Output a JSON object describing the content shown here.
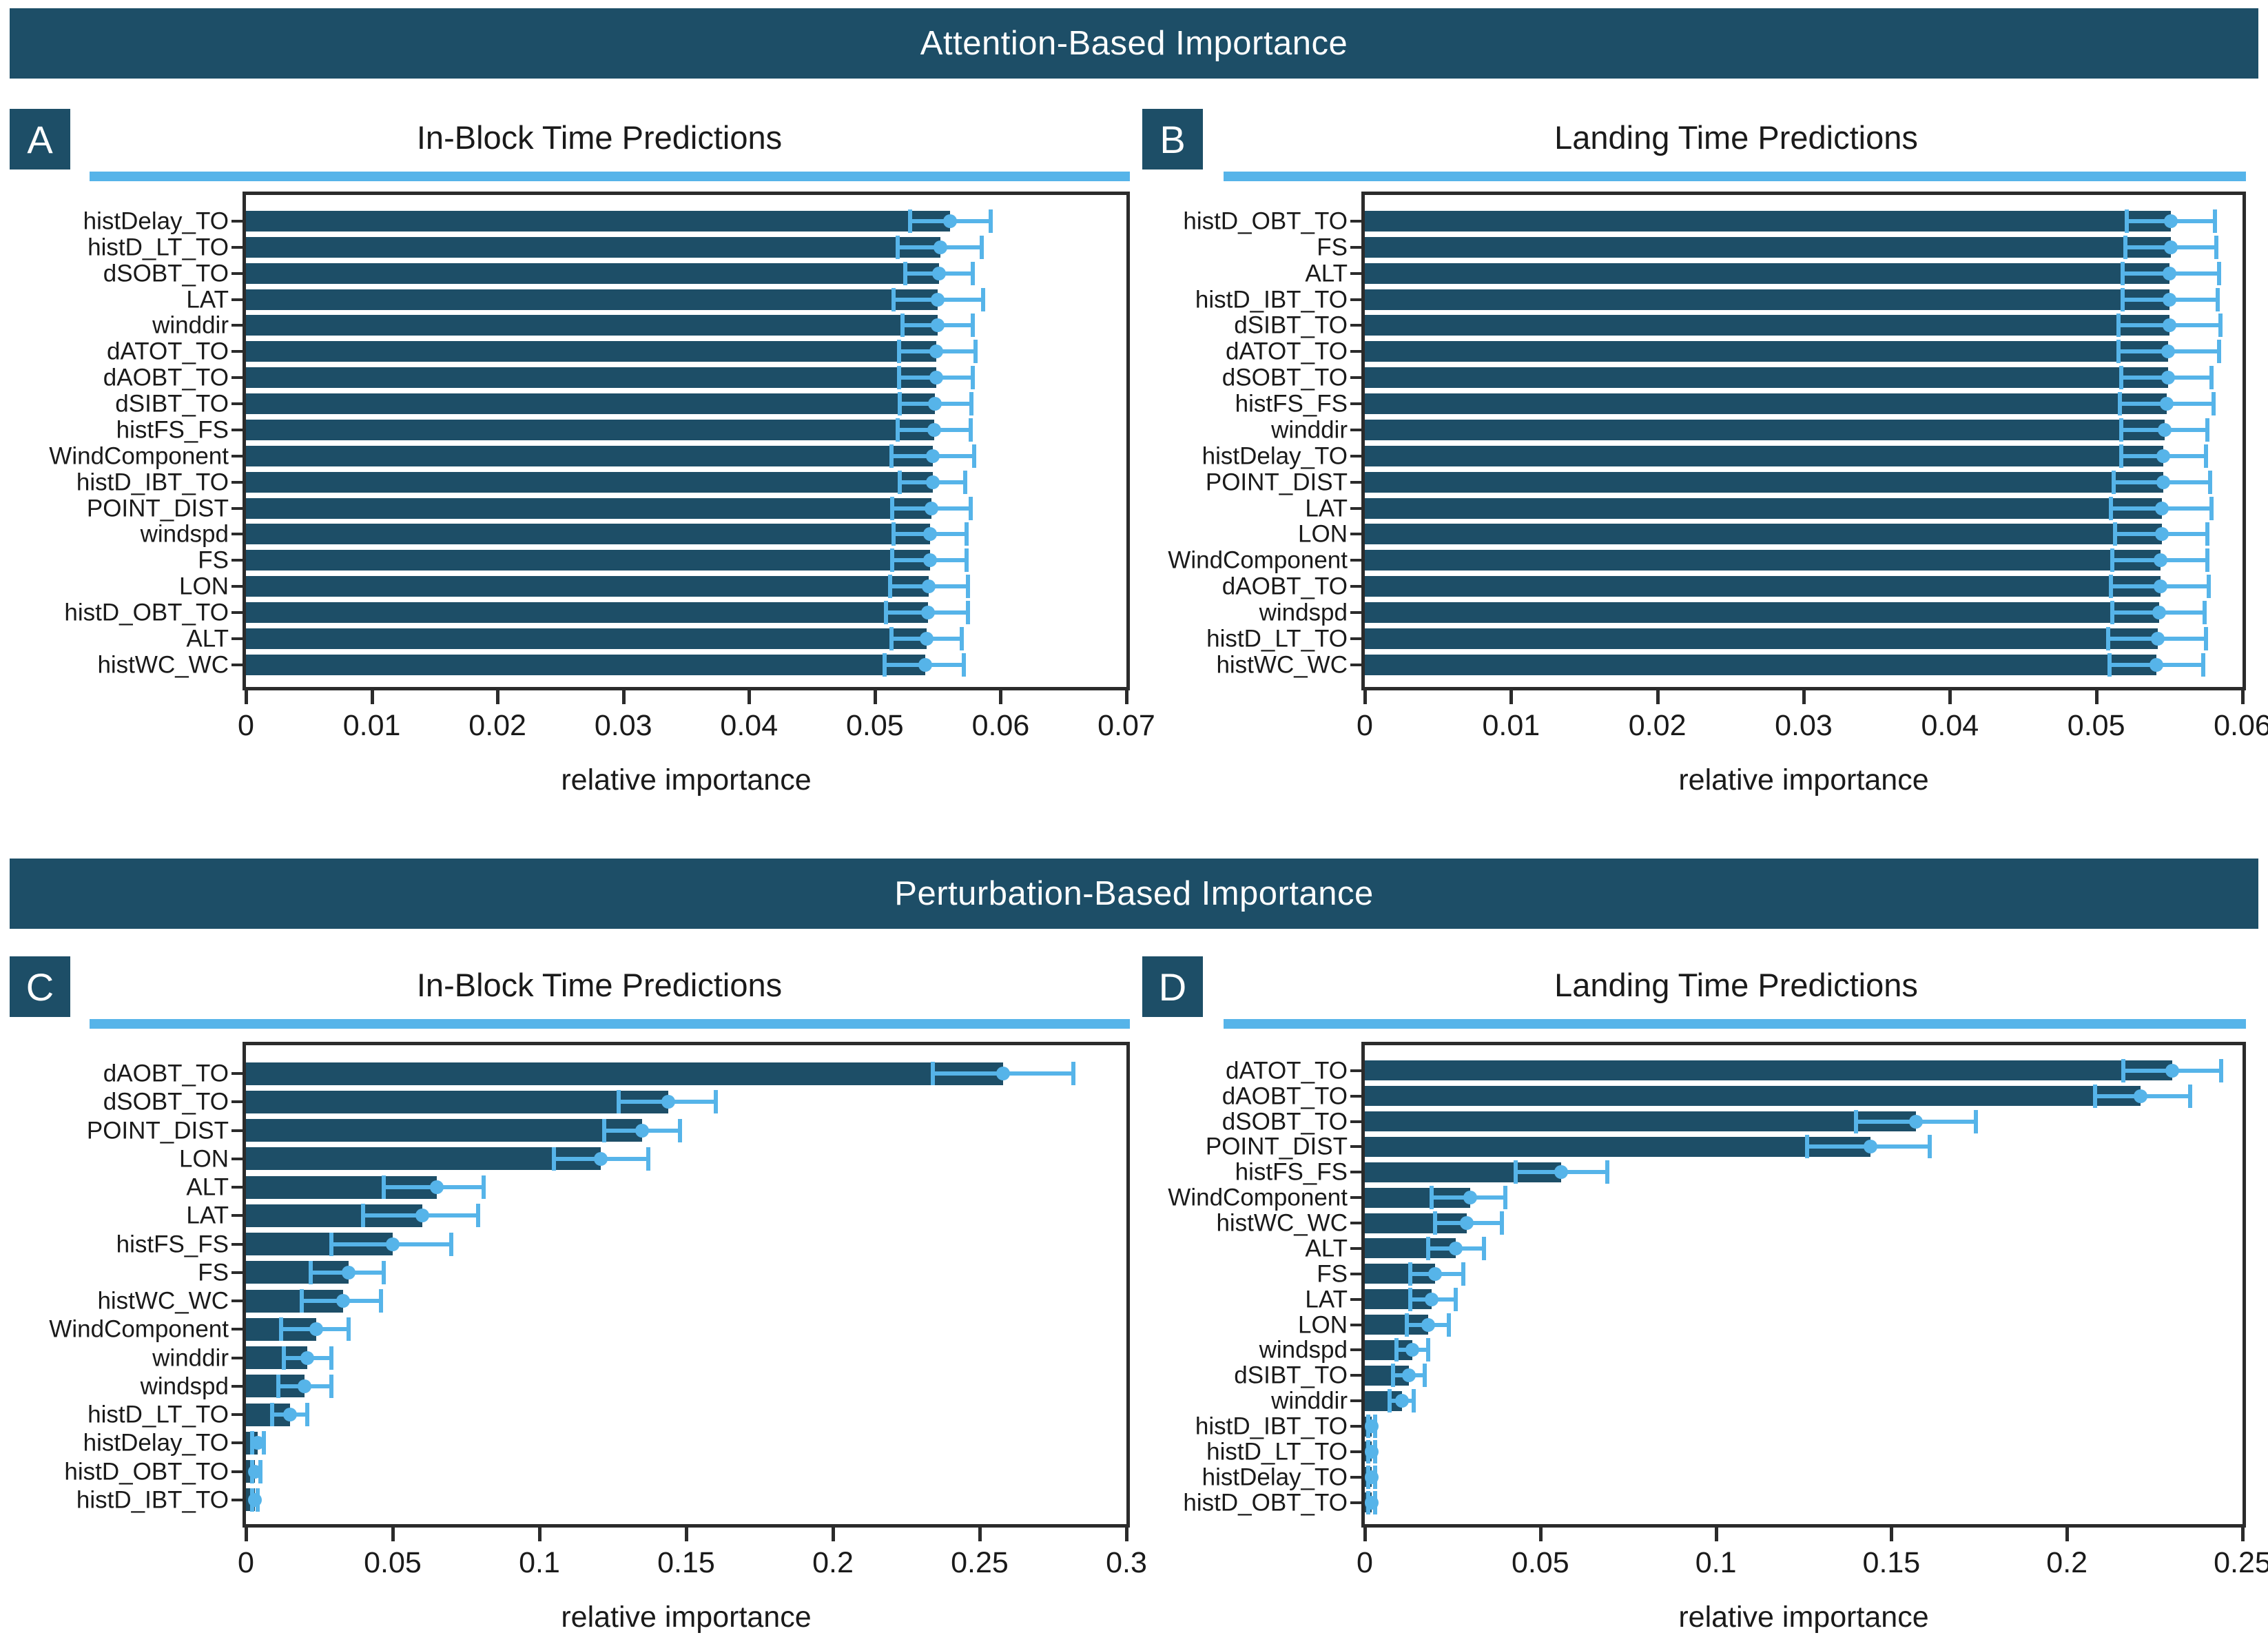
{
  "headers": [
    {
      "label": "Attention-Based Importance"
    },
    {
      "label": "Perturbation-Based Importance"
    }
  ],
  "colors": {
    "dark_teal": "#1D4E67",
    "sky_blue": "#56B4E9",
    "text": "#1A1A1A",
    "spine": "#2B2B2B",
    "header_text": "#FFFFFF"
  },
  "chart_data": [
    {
      "type": "bar",
      "orientation": "horizontal",
      "panel_letter": "A",
      "title": "In-Block Time Predictions",
      "xlabel": "relative importance",
      "xlim": [
        0,
        0.07
      ],
      "grid": false,
      "xticks": [
        {
          "v": 0,
          "label": "0"
        },
        {
          "v": 0.01,
          "label": "0.01"
        },
        {
          "v": 0.02,
          "label": "0.02"
        },
        {
          "v": 0.03,
          "label": "0.03"
        },
        {
          "v": 0.04,
          "label": "0.04"
        },
        {
          "v": 0.05,
          "label": "0.05"
        },
        {
          "v": 0.06,
          "label": "0.06"
        },
        {
          "v": 0.07,
          "label": "0.07"
        }
      ],
      "bars": [
        {
          "label": "histDelay_TO",
          "value": 0.056,
          "err_lo": 0.0528,
          "err_hi": 0.0592
        },
        {
          "label": "histD_LT_TO",
          "value": 0.0552,
          "err_lo": 0.0518,
          "err_hi": 0.0585
        },
        {
          "label": "dSOBT_TO",
          "value": 0.0551,
          "err_lo": 0.0524,
          "err_hi": 0.0578
        },
        {
          "label": "LAT",
          "value": 0.055,
          "err_lo": 0.0515,
          "err_hi": 0.0586
        },
        {
          "label": "winddir",
          "value": 0.055,
          "err_lo": 0.0522,
          "err_hi": 0.0578
        },
        {
          "label": "dATOT_TO",
          "value": 0.0549,
          "err_lo": 0.0519,
          "err_hi": 0.058
        },
        {
          "label": "dAOBT_TO",
          "value": 0.0549,
          "err_lo": 0.0519,
          "err_hi": 0.0578
        },
        {
          "label": "dSIBT_TO",
          "value": 0.0548,
          "err_lo": 0.052,
          "err_hi": 0.0577
        },
        {
          "label": "histFS_FS",
          "value": 0.0547,
          "err_lo": 0.0518,
          "err_hi": 0.0576
        },
        {
          "label": "WindComponent",
          "value": 0.0546,
          "err_lo": 0.0513,
          "err_hi": 0.0579
        },
        {
          "label": "histD_IBT_TO",
          "value": 0.0546,
          "err_lo": 0.052,
          "err_hi": 0.0572
        },
        {
          "label": "POINT_DIST",
          "value": 0.0545,
          "err_lo": 0.0514,
          "err_hi": 0.0576
        },
        {
          "label": "windspd",
          "value": 0.0544,
          "err_lo": 0.0515,
          "err_hi": 0.0573
        },
        {
          "label": "FS",
          "value": 0.0544,
          "err_lo": 0.0514,
          "err_hi": 0.0573
        },
        {
          "label": "LON",
          "value": 0.0543,
          "err_lo": 0.0512,
          "err_hi": 0.0574
        },
        {
          "label": "histD_OBT_TO",
          "value": 0.0542,
          "err_lo": 0.0509,
          "err_hi": 0.0574
        },
        {
          "label": "ALT",
          "value": 0.0541,
          "err_lo": 0.0513,
          "err_hi": 0.0569
        },
        {
          "label": "histWC_WC",
          "value": 0.054,
          "err_lo": 0.0508,
          "err_hi": 0.0571
        }
      ]
    },
    {
      "type": "bar",
      "orientation": "horizontal",
      "panel_letter": "B",
      "title": "Landing Time Predictions",
      "xlabel": "relative importance",
      "xlim": [
        0,
        0.06
      ],
      "grid": false,
      "xticks": [
        {
          "v": 0,
          "label": "0"
        },
        {
          "v": 0.01,
          "label": "0.01"
        },
        {
          "v": 0.02,
          "label": "0.02"
        },
        {
          "v": 0.03,
          "label": "0.03"
        },
        {
          "v": 0.04,
          "label": "0.04"
        },
        {
          "v": 0.05,
          "label": "0.05"
        },
        {
          "v": 0.06,
          "label": "0.06"
        }
      ],
      "bars": [
        {
          "label": "histD_OBT_TO",
          "value": 0.0551,
          "err_lo": 0.0521,
          "err_hi": 0.0581
        },
        {
          "label": "FS",
          "value": 0.0551,
          "err_lo": 0.052,
          "err_hi": 0.0582
        },
        {
          "label": "ALT",
          "value": 0.055,
          "err_lo": 0.0518,
          "err_hi": 0.0584
        },
        {
          "label": "histD_IBT_TO",
          "value": 0.055,
          "err_lo": 0.0518,
          "err_hi": 0.0583
        },
        {
          "label": "dSIBT_TO",
          "value": 0.055,
          "err_lo": 0.0515,
          "err_hi": 0.0585
        },
        {
          "label": "dATOT_TO",
          "value": 0.0549,
          "err_lo": 0.0515,
          "err_hi": 0.0584
        },
        {
          "label": "dSOBT_TO",
          "value": 0.0549,
          "err_lo": 0.0517,
          "err_hi": 0.0579
        },
        {
          "label": "histFS_FS",
          "value": 0.0548,
          "err_lo": 0.0516,
          "err_hi": 0.058
        },
        {
          "label": "winddir",
          "value": 0.0547,
          "err_lo": 0.0517,
          "err_hi": 0.0576
        },
        {
          "label": "histDelay_TO",
          "value": 0.0546,
          "err_lo": 0.0517,
          "err_hi": 0.0575
        },
        {
          "label": "POINT_DIST",
          "value": 0.0546,
          "err_lo": 0.0512,
          "err_hi": 0.0578
        },
        {
          "label": "LAT",
          "value": 0.0545,
          "err_lo": 0.051,
          "err_hi": 0.0579
        },
        {
          "label": "LON",
          "value": 0.0545,
          "err_lo": 0.0513,
          "err_hi": 0.0576
        },
        {
          "label": "WindComponent",
          "value": 0.0544,
          "err_lo": 0.0511,
          "err_hi": 0.0576
        },
        {
          "label": "dAOBT_TO",
          "value": 0.0544,
          "err_lo": 0.051,
          "err_hi": 0.0577
        },
        {
          "label": "windspd",
          "value": 0.0543,
          "err_lo": 0.0511,
          "err_hi": 0.0574
        },
        {
          "label": "histD_LT_TO",
          "value": 0.0542,
          "err_lo": 0.0508,
          "err_hi": 0.0575
        },
        {
          "label": "histWC_WC",
          "value": 0.0541,
          "err_lo": 0.0509,
          "err_hi": 0.0573
        }
      ]
    },
    {
      "type": "bar",
      "orientation": "horizontal",
      "panel_letter": "C",
      "title": "In-Block Time Predictions",
      "xlabel": "relative importance",
      "xlim": [
        0,
        0.3
      ],
      "grid": false,
      "xticks": [
        {
          "v": 0,
          "label": "0"
        },
        {
          "v": 0.05,
          "label": "0.05"
        },
        {
          "v": 0.1,
          "label": "0.1"
        },
        {
          "v": 0.15,
          "label": "0.15"
        },
        {
          "v": 0.2,
          "label": "0.2"
        },
        {
          "v": 0.25,
          "label": "0.25"
        },
        {
          "v": 0.3,
          "label": "0.3"
        }
      ],
      "bars": [
        {
          "label": "dAOBT_TO",
          "value": 0.258,
          "err_lo": 0.234,
          "err_hi": 0.282
        },
        {
          "label": "dSOBT_TO",
          "value": 0.144,
          "err_lo": 0.127,
          "err_hi": 0.16
        },
        {
          "label": "POINT_DIST",
          "value": 0.135,
          "err_lo": 0.122,
          "err_hi": 0.148
        },
        {
          "label": "LON",
          "value": 0.121,
          "err_lo": 0.105,
          "err_hi": 0.137
        },
        {
          "label": "ALT",
          "value": 0.065,
          "err_lo": 0.047,
          "err_hi": 0.081
        },
        {
          "label": "LAT",
          "value": 0.06,
          "err_lo": 0.04,
          "err_hi": 0.079
        },
        {
          "label": "histFS_FS",
          "value": 0.05,
          "err_lo": 0.029,
          "err_hi": 0.07
        },
        {
          "label": "FS",
          "value": 0.035,
          "err_lo": 0.022,
          "err_hi": 0.047
        },
        {
          "label": "histWC_WC",
          "value": 0.033,
          "err_lo": 0.019,
          "err_hi": 0.046
        },
        {
          "label": "WindComponent",
          "value": 0.024,
          "err_lo": 0.012,
          "err_hi": 0.035
        },
        {
          "label": "winddir",
          "value": 0.021,
          "err_lo": 0.013,
          "err_hi": 0.029
        },
        {
          "label": "windspd",
          "value": 0.02,
          "err_lo": 0.011,
          "err_hi": 0.029
        },
        {
          "label": "histD_LT_TO",
          "value": 0.015,
          "err_lo": 0.009,
          "err_hi": 0.021
        },
        {
          "label": "histDelay_TO",
          "value": 0.004,
          "err_lo": 0.002,
          "err_hi": 0.006
        },
        {
          "label": "histD_OBT_TO",
          "value": 0.003,
          "err_lo": 0.002,
          "err_hi": 0.005
        },
        {
          "label": "histD_IBT_TO",
          "value": 0.003,
          "err_lo": 0.002,
          "err_hi": 0.004
        }
      ]
    },
    {
      "type": "bar",
      "orientation": "horizontal",
      "panel_letter": "D",
      "title": "Landing Time Predictions",
      "xlabel": "relative importance",
      "xlim": [
        0,
        0.25
      ],
      "grid": false,
      "xticks": [
        {
          "v": 0,
          "label": "0"
        },
        {
          "v": 0.05,
          "label": "0.05"
        },
        {
          "v": 0.1,
          "label": "0.1"
        },
        {
          "v": 0.15,
          "label": "0.15"
        },
        {
          "v": 0.2,
          "label": "0.2"
        },
        {
          "v": 0.25,
          "label": "0.25"
        }
      ],
      "bars": [
        {
          "label": "dATOT_TO",
          "value": 0.23,
          "err_lo": 0.216,
          "err_hi": 0.244
        },
        {
          "label": "dAOBT_TO",
          "value": 0.221,
          "err_lo": 0.208,
          "err_hi": 0.235
        },
        {
          "label": "dSOBT_TO",
          "value": 0.157,
          "err_lo": 0.14,
          "err_hi": 0.174
        },
        {
          "label": "POINT_DIST",
          "value": 0.144,
          "err_lo": 0.126,
          "err_hi": 0.161
        },
        {
          "label": "histFS_FS",
          "value": 0.056,
          "err_lo": 0.043,
          "err_hi": 0.069
        },
        {
          "label": "WindComponent",
          "value": 0.03,
          "err_lo": 0.019,
          "err_hi": 0.04
        },
        {
          "label": "histWC_WC",
          "value": 0.029,
          "err_lo": 0.02,
          "err_hi": 0.039
        },
        {
          "label": "ALT",
          "value": 0.026,
          "err_lo": 0.018,
          "err_hi": 0.034
        },
        {
          "label": "FS",
          "value": 0.02,
          "err_lo": 0.013,
          "err_hi": 0.028
        },
        {
          "label": "LAT",
          "value": 0.019,
          "err_lo": 0.013,
          "err_hi": 0.026
        },
        {
          "label": "LON",
          "value": 0.018,
          "err_lo": 0.012,
          "err_hi": 0.024
        },
        {
          "label": "windspd",
          "value": 0.0135,
          "err_lo": 0.009,
          "err_hi": 0.018
        },
        {
          "label": "dSIBT_TO",
          "value": 0.0125,
          "err_lo": 0.008,
          "err_hi": 0.017
        },
        {
          "label": "winddir",
          "value": 0.0105,
          "err_lo": 0.007,
          "err_hi": 0.014
        },
        {
          "label": "histD_IBT_TO",
          "value": 0.002,
          "err_lo": 0.001,
          "err_hi": 0.003
        },
        {
          "label": "histD_LT_TO",
          "value": 0.002,
          "err_lo": 0.001,
          "err_hi": 0.003
        },
        {
          "label": "histDelay_TO",
          "value": 0.002,
          "err_lo": 0.001,
          "err_hi": 0.003
        },
        {
          "label": "histD_OBT_TO",
          "value": 0.002,
          "err_lo": 0.001,
          "err_hi": 0.003
        }
      ]
    }
  ]
}
